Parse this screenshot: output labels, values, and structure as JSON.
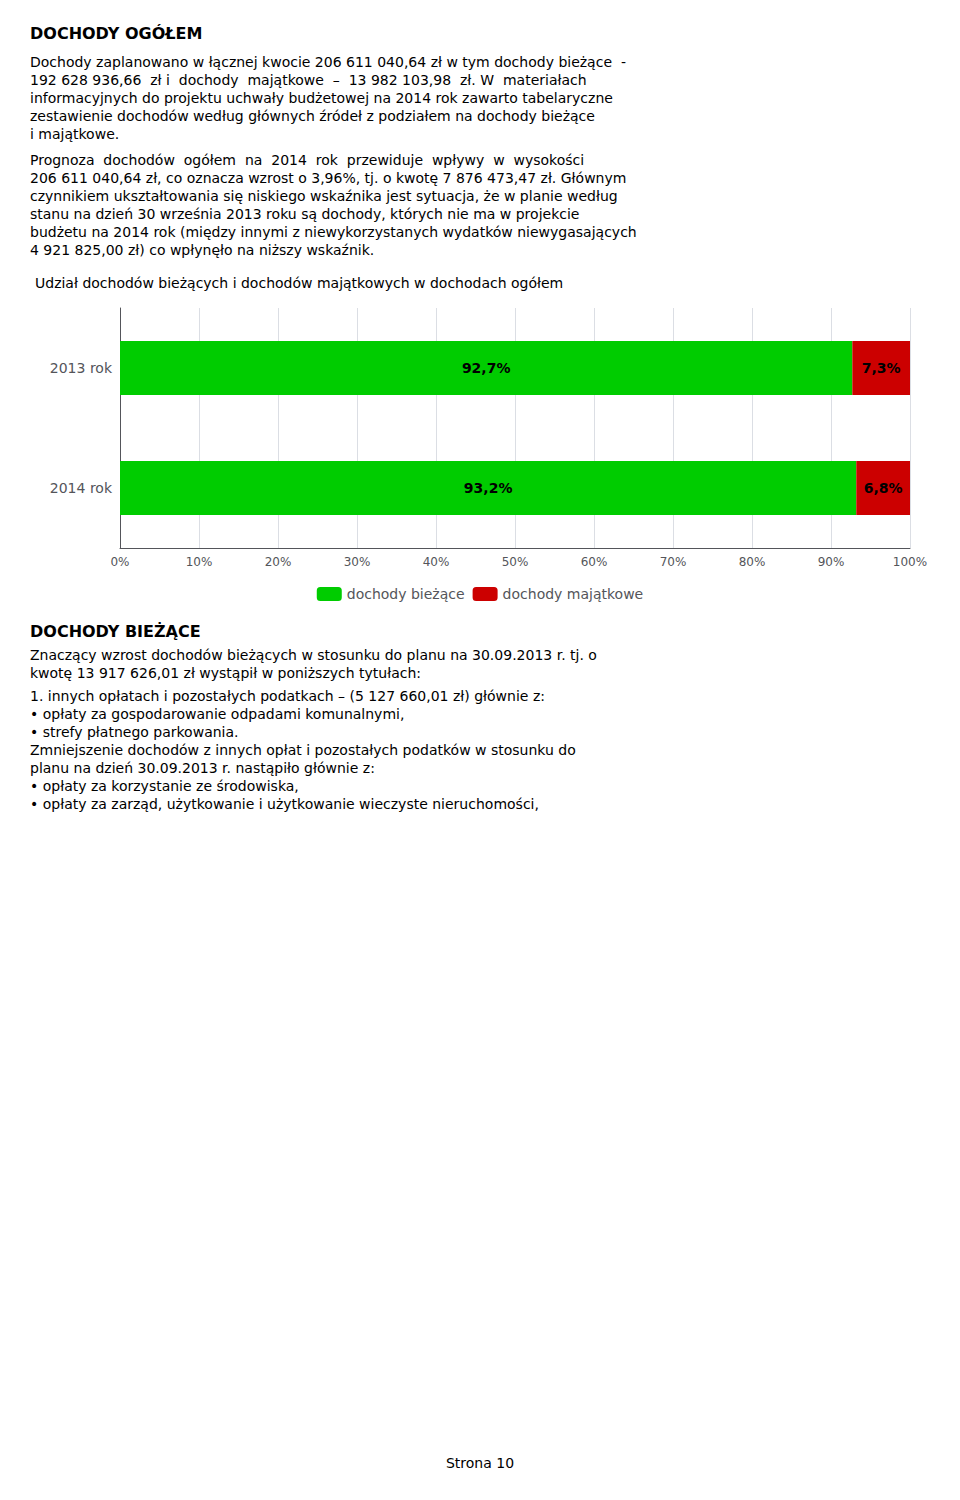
{
  "chart_data": {
    "type": "bar",
    "orientation": "horizontal",
    "stacked": true,
    "title": "Udział dochodów bieżących i dochodów majątkowych w dochodach ogółem",
    "categories": [
      "2013 rok",
      "2014 rok"
    ],
    "series": [
      {
        "name": "dochody bieżące",
        "color": "#00CC00",
        "values": [
          92.7,
          93.2
        ],
        "value_labels": [
          "92,7%",
          "93,2%"
        ]
      },
      {
        "name": "dochody majątkowe",
        "color": "#CC0000",
        "values": [
          7.3,
          6.8
        ],
        "value_labels": [
          "7,3%",
          "6,8%"
        ]
      }
    ],
    "xlim": [
      0,
      100
    ],
    "xticks": [
      {
        "value": 0,
        "label": "0%"
      },
      {
        "value": 10,
        "label": "10%"
      },
      {
        "value": 20,
        "label": "20%"
      },
      {
        "value": 30,
        "label": "30%"
      },
      {
        "value": 40,
        "label": "40%"
      },
      {
        "value": 50,
        "label": "50%"
      },
      {
        "value": 60,
        "label": "60%"
      },
      {
        "value": 70,
        "label": "70%"
      },
      {
        "value": 80,
        "label": "80%"
      },
      {
        "value": 90,
        "label": "90%"
      },
      {
        "value": 100,
        "label": "100%"
      }
    ],
    "grid": true,
    "legend": "bottom",
    "data_labels": true,
    "annotations": [
      "DOCHODY OGÓŁEM",
      "Dochody zaplanowano w łącznej kwocie 206 611 040,64 zł w tym dochody bieżące  -",
      "192 628 936,66  zł i  dochody  majątkowe  –  13 982 103,98  zł. W  materiałach",
      "informacyjnych do projektu uchwały budżetowej na 2014 rok zawarto tabelaryczne",
      "zestawienie dochodów według głównych źródeł z podziałem na dochody bieżące",
      "i majątkowe.",
      "Prognoza  dochodów  ogółem  na  2014  rok  przewiduje  wpływy  w  wysokości",
      "206 611 040,64 zł, co oznacza wzrost o 3,96%, tj. o kwotę 7 876 473,47 zł. Głównym",
      "czynnikiem ukształtowania się niskiego wskaźnika jest sytuacja, że w planie według",
      "stanu na dzień 30 września 2013 roku są dochody, których nie ma w projekcie",
      "budżetu na 2014 rok (między innymi z niewykorzystanych wydatków niewygasających",
      "4 921 825,00 zł) co wpłynęło na niższy wskaźnik.",
      "DOCHODY BIEŻĄCE",
      "Znaczący wzrost dochodów bieżących w stosunku do planu na 30.09.2013 r. tj. o",
      "kwotę 13 917 626,01 zł wystąpił w poniższych tytułach:",
      "1. innych opłatach i pozostałych podatkach – (5 127 660,01 zł) głównie z:",
      "• opłaty za gospodarowanie odpadami komunalnymi,",
      "• strefy płatnego parkowania.",
      "Zmniejszenie dochodów z innych opłat i pozostałych podatków w stosunku do",
      "planu na dzień 30.09.2013 r. nastąpiło głównie z:",
      "• opłaty za korzystanie ze środowiska,",
      "• opłaty za zarząd, użytkowanie i użytkowanie wieczyste nieruchomości,",
      "Strona 10"
    ]
  }
}
